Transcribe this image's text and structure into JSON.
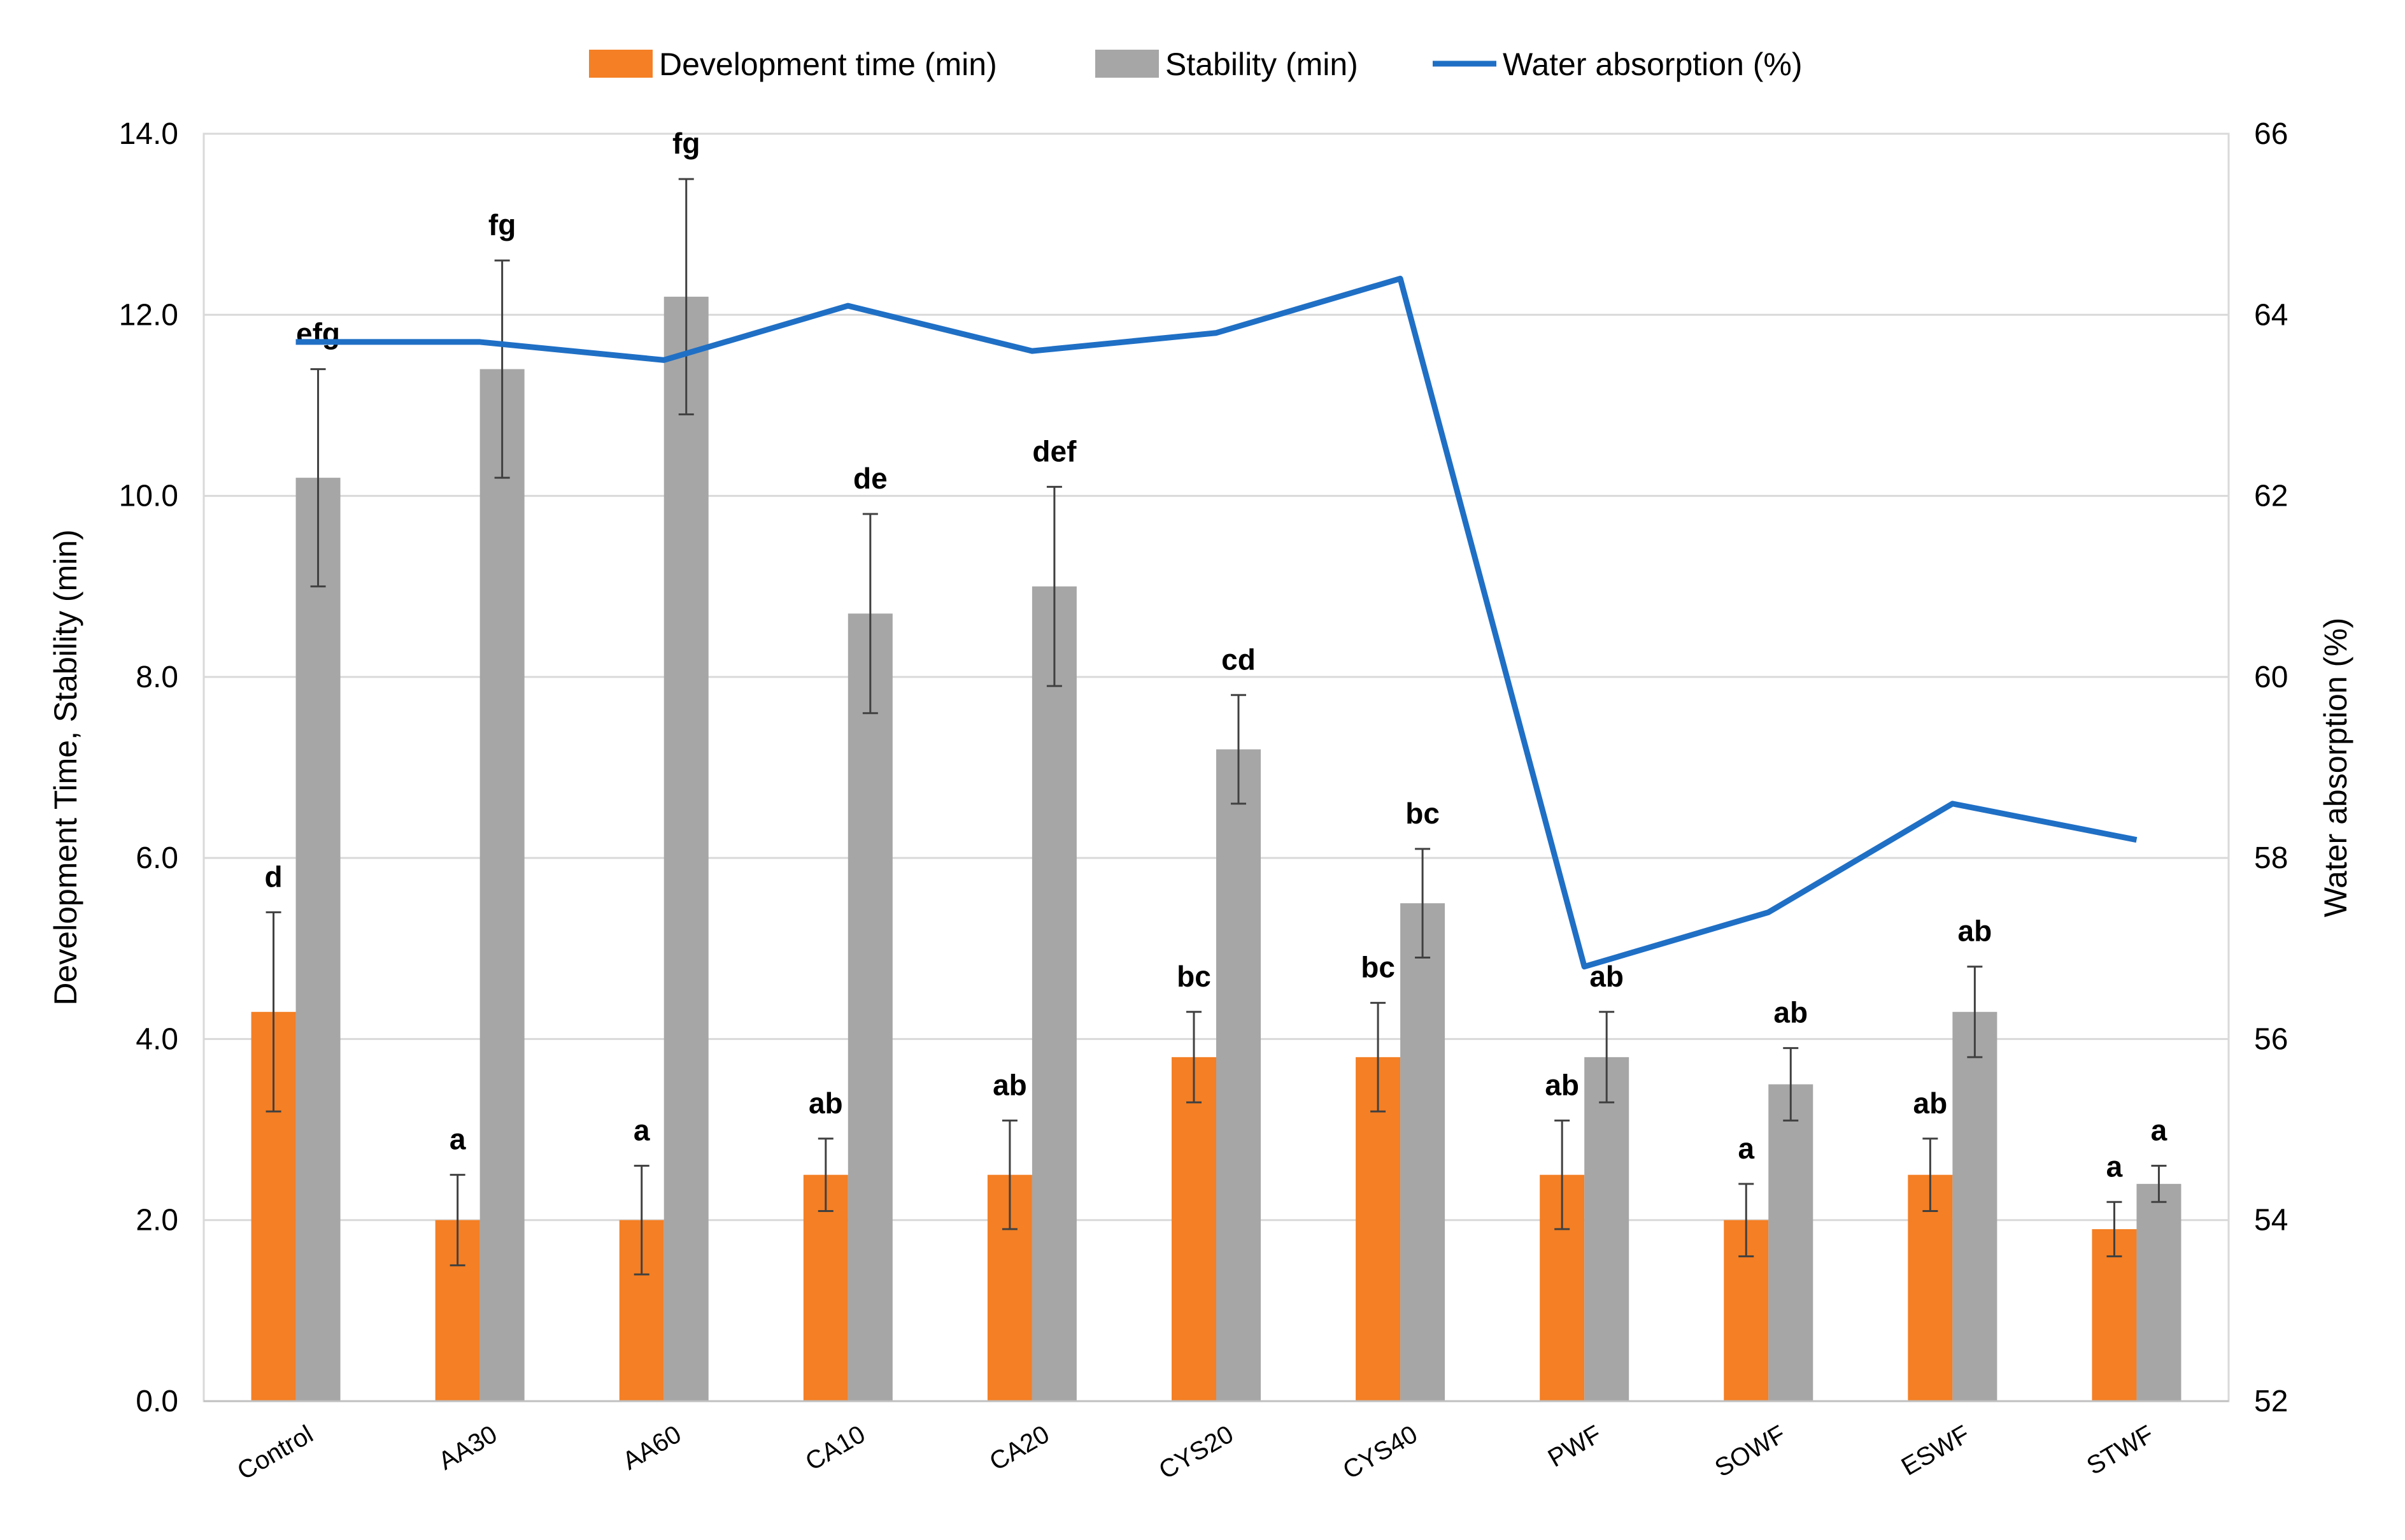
{
  "chart_data": {
    "type": "bar",
    "categories": [
      "Control",
      "AA30",
      "AA60",
      "CA10",
      "CA20",
      "CYS20",
      "CYS40",
      "PWF",
      "SOWF",
      "ESWF",
      "STWF"
    ],
    "series": [
      {
        "name": "Development time (min)",
        "type": "bar",
        "axis": "left",
        "color": "#F47F24",
        "values": [
          4.3,
          2.0,
          2.0,
          2.5,
          2.5,
          3.8,
          3.8,
          2.5,
          2.0,
          2.5,
          1.9
        ],
        "error": [
          1.1,
          0.5,
          0.6,
          0.4,
          0.6,
          0.5,
          0.6,
          0.6,
          0.4,
          0.4,
          0.3
        ],
        "labels": [
          "d",
          "a",
          "a",
          "ab",
          "ab",
          "bc",
          "bc",
          "ab",
          "a",
          "ab",
          "a"
        ]
      },
      {
        "name": "Stability (min)",
        "type": "bar",
        "axis": "left",
        "color": "#A6A6A6",
        "values": [
          10.2,
          11.4,
          12.2,
          8.7,
          9.0,
          7.2,
          5.5,
          3.8,
          3.5,
          4.3,
          2.4
        ],
        "error": [
          1.2,
          1.2,
          1.3,
          1.1,
          1.1,
          0.6,
          0.6,
          0.5,
          0.4,
          0.5,
          0.2
        ],
        "labels": [
          "efg",
          "fg",
          "fg",
          "de",
          "def",
          "cd",
          "bc",
          "ab",
          "ab",
          "ab",
          "a"
        ]
      },
      {
        "name": "Water absorption (%)",
        "type": "line",
        "axis": "right",
        "color": "#1F6FC5",
        "values": [
          63.7,
          63.7,
          63.5,
          64.1,
          63.6,
          63.8,
          64.4,
          56.8,
          57.4,
          58.6,
          58.2
        ]
      }
    ],
    "y_left": {
      "label": "Development Time, Stability (min)",
      "range": [
        0,
        14
      ],
      "ticks": [
        "0.0",
        "2.0",
        "4.0",
        "6.0",
        "8.0",
        "10.0",
        "12.0",
        "14.0"
      ]
    },
    "y_right": {
      "label": "Water absorption (%)",
      "range": [
        52,
        66
      ],
      "ticks": [
        "52",
        "54",
        "56",
        "58",
        "60",
        "62",
        "64",
        "66"
      ]
    },
    "grid": true,
    "legend_position": "top-center"
  }
}
